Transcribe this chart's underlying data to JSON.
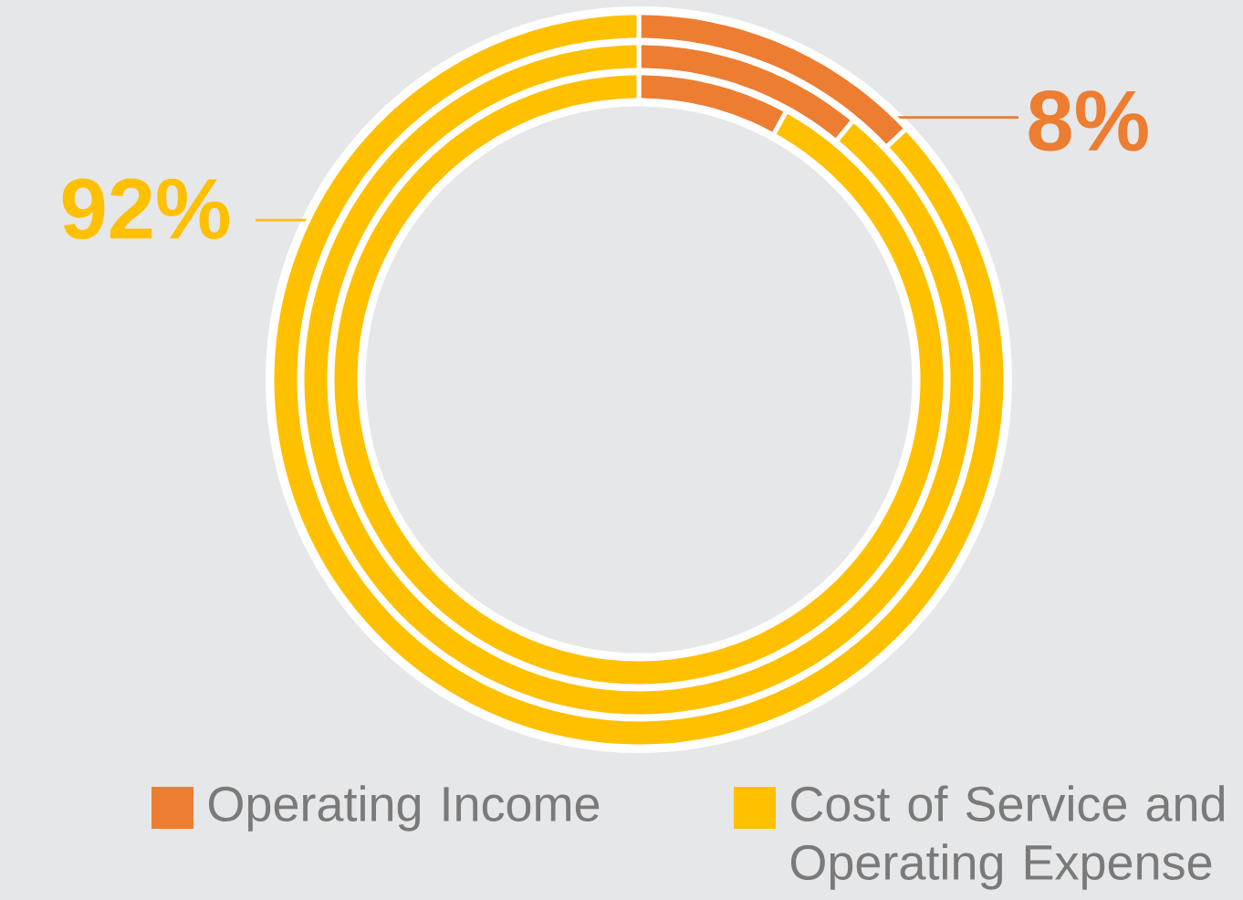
{
  "chart_data": [
    {
      "type": "donut",
      "categories": [
        "Operating Income",
        "Cost of Service and Operating Expense"
      ],
      "colors": [
        "#ed7d31",
        "#ffc000"
      ],
      "values": [
        13,
        87
      ],
      "legend": "bottom"
    },
    {
      "type": "donut",
      "categories": [
        null,
        null
      ],
      "colors": [
        "#ed7d31",
        "#ffc000"
      ],
      "values": [
        11,
        89
      ]
    },
    {
      "type": "donut",
      "categories": [
        null,
        null
      ],
      "colors": [
        "#ed7d31",
        "#ffc000"
      ],
      "values": [
        8,
        92
      ],
      "value_labels": [
        "8%",
        "92%"
      ]
    }
  ]
}
